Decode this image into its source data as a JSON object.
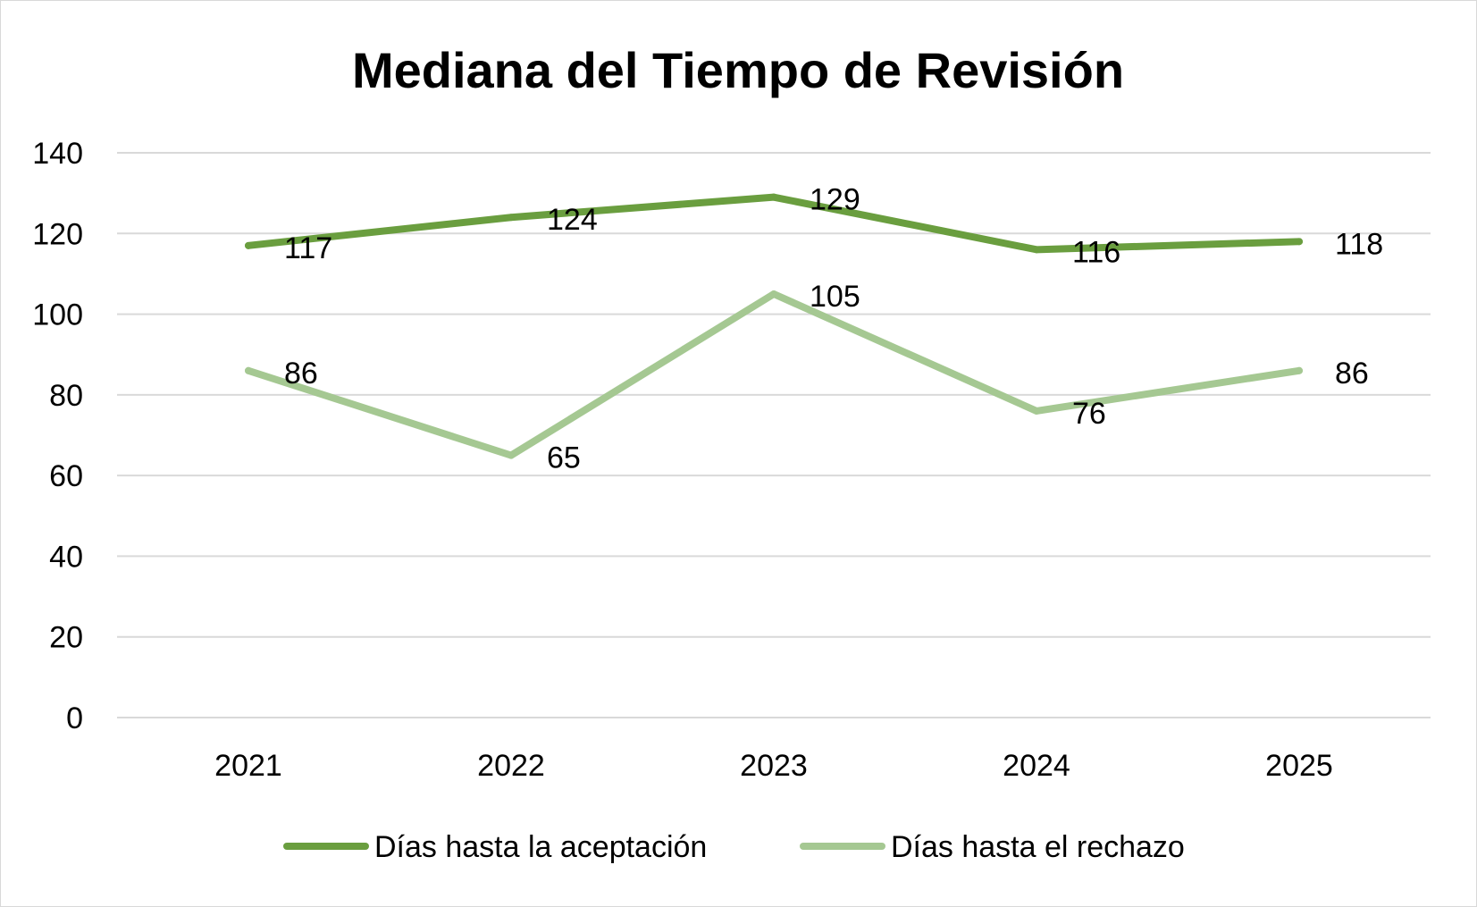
{
  "chart_data": {
    "type": "line",
    "title": "Mediana del Tiempo de Revisión",
    "categories": [
      "2021",
      "2022",
      "2023",
      "2024",
      "2025"
    ],
    "series": [
      {
        "name": "Días hasta la aceptación",
        "values": [
          117,
          124,
          129,
          116,
          118
        ],
        "color": "#6a9e3f"
      },
      {
        "name": "Días hasta el rechazo",
        "values": [
          86,
          65,
          105,
          76,
          86
        ],
        "color": "#a5c892"
      }
    ],
    "xlabel": "",
    "ylabel": "",
    "ylim": [
      0,
      140
    ],
    "yticks": [
      0,
      20,
      40,
      60,
      80,
      100,
      120,
      140
    ],
    "grid": true,
    "gridline_color": "#d9d9d9",
    "legend_position": "bottom"
  }
}
